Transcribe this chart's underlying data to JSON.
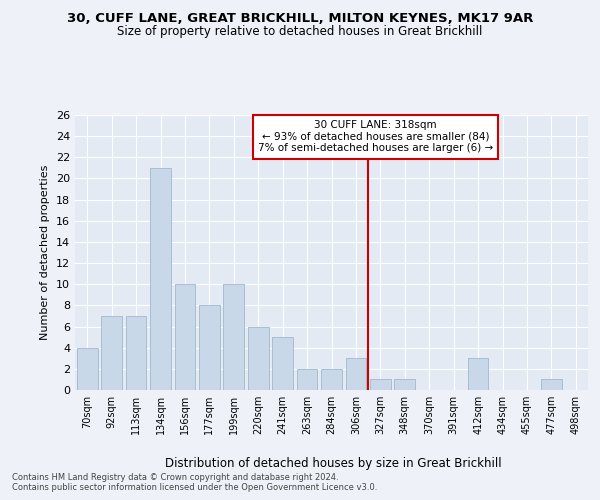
{
  "title1": "30, CUFF LANE, GREAT BRICKHILL, MILTON KEYNES, MK17 9AR",
  "title2": "Size of property relative to detached houses in Great Brickhill",
  "xlabel": "Distribution of detached houses by size in Great Brickhill",
  "ylabel": "Number of detached properties",
  "categories": [
    "70sqm",
    "92sqm",
    "113sqm",
    "134sqm",
    "156sqm",
    "177sqm",
    "199sqm",
    "220sqm",
    "241sqm",
    "263sqm",
    "284sqm",
    "306sqm",
    "327sqm",
    "348sqm",
    "370sqm",
    "391sqm",
    "412sqm",
    "434sqm",
    "455sqm",
    "477sqm",
    "498sqm"
  ],
  "values": [
    4,
    7,
    7,
    21,
    10,
    8,
    10,
    6,
    5,
    2,
    2,
    3,
    1,
    1,
    0,
    0,
    3,
    0,
    0,
    1,
    0
  ],
  "bar_color": "#c8d8e8",
  "bar_edgecolor": "#a0b8cc",
  "ylim": [
    0,
    26
  ],
  "yticks": [
    0,
    2,
    4,
    6,
    8,
    10,
    12,
    14,
    16,
    18,
    20,
    22,
    24,
    26
  ],
  "vline_pos": 11.5,
  "vline_color": "#cc0000",
  "annotation_text": "30 CUFF LANE: 318sqm\n← 93% of detached houses are smaller (84)\n7% of semi-detached houses are larger (6) →",
  "annotation_box_color": "#cc0000",
  "footer": "Contains HM Land Registry data © Crown copyright and database right 2024.\nContains public sector information licensed under the Open Government Licence v3.0.",
  "bg_color": "#eef2f8",
  "plot_bg_color": "#e4eaf4"
}
